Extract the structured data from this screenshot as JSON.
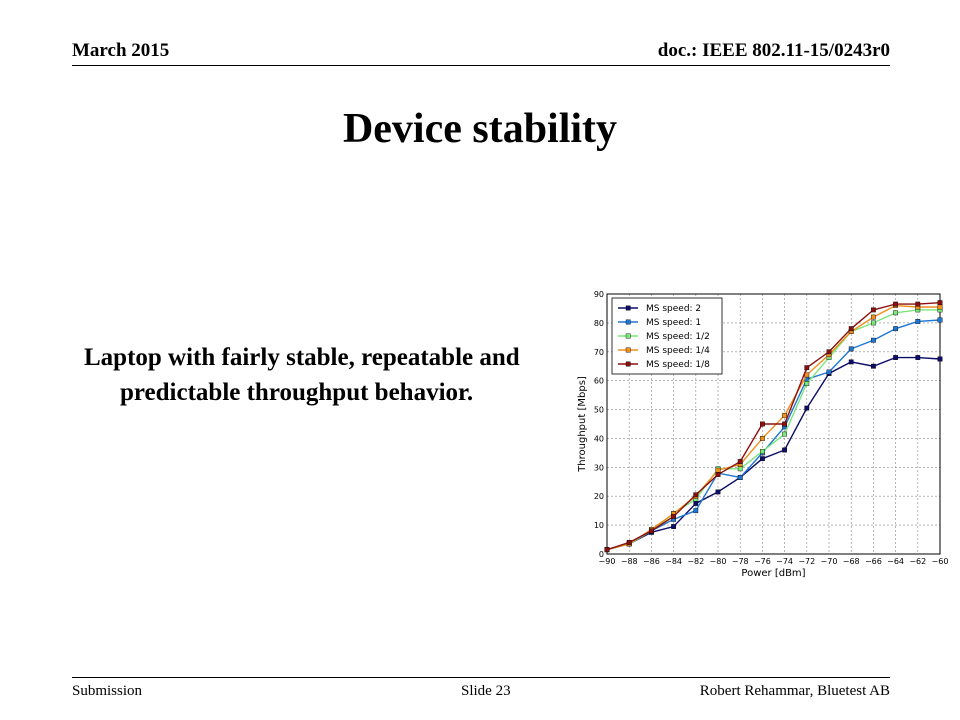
{
  "header": {
    "date": "March 2015",
    "doc": "doc.: IEEE 802.11-15/0243r0"
  },
  "slide": {
    "title": "Device stability",
    "body": "Laptop with fairly stable, repeatable and predictable throughput behavior."
  },
  "footer": {
    "left": "Submission",
    "center": "Slide 23",
    "right": "Robert Rehammar, Bluetest AB"
  },
  "chart_data": {
    "type": "line",
    "xlabel": "Power [dBm]",
    "ylabel": "Throughput [Mbps]",
    "xlim": [
      -90,
      -60
    ],
    "ylim": [
      0,
      90
    ],
    "xticks": [
      -90,
      -88,
      -86,
      -84,
      -82,
      -80,
      -78,
      -76,
      -74,
      -72,
      -70,
      -68,
      -66,
      -64,
      -62,
      -60
    ],
    "yticks": [
      0,
      10,
      20,
      30,
      40,
      50,
      60,
      70,
      80,
      90
    ],
    "grid": true,
    "legend_position": "top-left",
    "x": [
      -90,
      -88,
      -86,
      -84,
      -82,
      -80,
      -78,
      -76,
      -74,
      -72,
      -70,
      -68,
      -66,
      -64,
      -62,
      -60
    ],
    "series": [
      {
        "name": "MS speed: 2",
        "color": "#0d0d6b",
        "values": [
          1.5,
          3.5,
          7.5,
          9.5,
          17.5,
          21.5,
          26.5,
          33,
          36,
          50.5,
          62.5,
          66.5,
          65,
          68,
          68,
          67.5
        ]
      },
      {
        "name": "MS speed: 1",
        "color": "#1f77d4",
        "values": [
          1.5,
          3.5,
          8,
          12,
          15,
          28,
          26.5,
          35,
          44,
          60.5,
          63,
          71,
          74,
          78,
          80.5,
          81
        ]
      },
      {
        "name": "MS speed: 1/2",
        "color": "#7be67b",
        "values": [
          1.5,
          3.5,
          8,
          14,
          19,
          29.5,
          29.5,
          35.5,
          41.5,
          59,
          68,
          77,
          80,
          83.5,
          84.5,
          84.5
        ]
      },
      {
        "name": "MS speed: 1/4",
        "color": "#f0901c",
        "values": [
          1.5,
          3.5,
          8.5,
          14,
          20,
          29,
          31,
          40,
          48,
          62,
          69,
          77,
          82,
          86,
          85.5,
          85.5
        ]
      },
      {
        "name": "MS speed: 1/8",
        "color": "#8c1010",
        "values": [
          1.5,
          4,
          8,
          13,
          20.5,
          27.5,
          32,
          45,
          45,
          64.5,
          70,
          78,
          84.5,
          86.5,
          86.5,
          87
        ]
      }
    ]
  }
}
